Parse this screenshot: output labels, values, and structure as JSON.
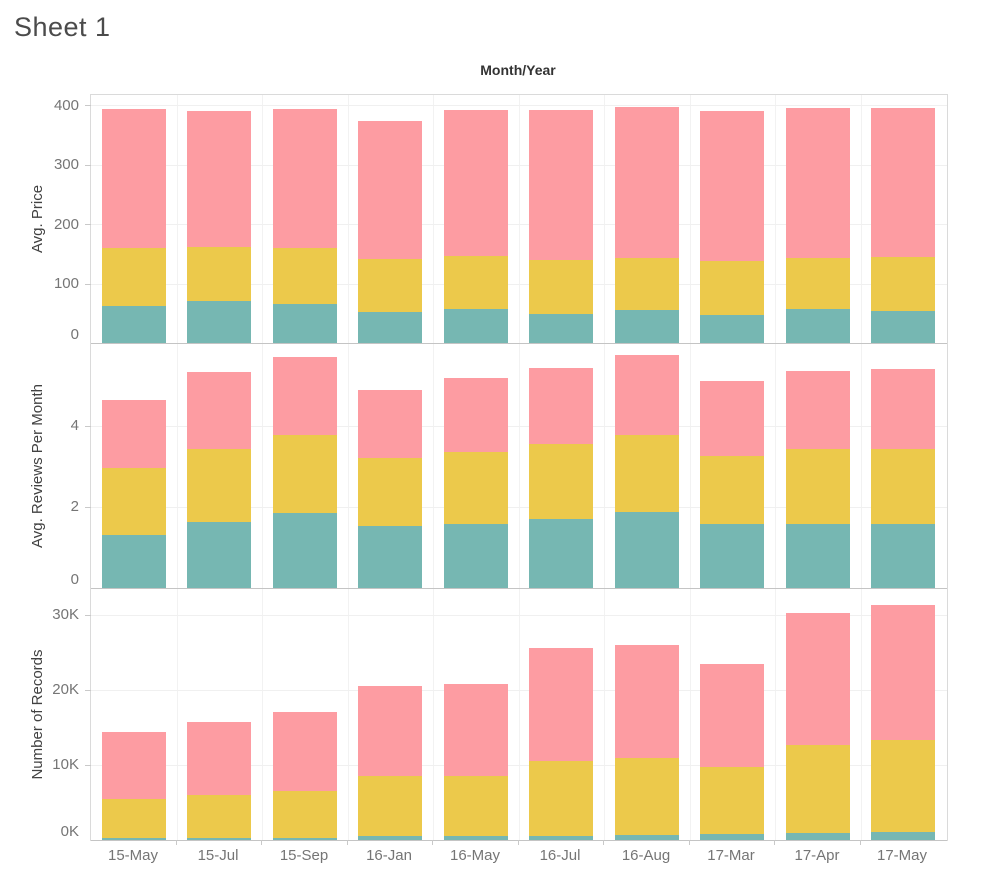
{
  "sheet_title": "Sheet 1",
  "chart_data": {
    "type": "bar",
    "stacked": true,
    "title": "Sheet 1",
    "x_axis_title": "Month/Year",
    "legend_position": "none",
    "grid": true,
    "categories": [
      "15-May",
      "15-Jul",
      "15-Sep",
      "16-Jan",
      "16-May",
      "16-Jul",
      "16-Aug",
      "17-Mar",
      "17-Apr",
      "17-May"
    ],
    "segment_colors": {
      "teal": "#76b7b2",
      "yellow": "#ecc94b",
      "pink": "#fd9ca2"
    },
    "panels": [
      {
        "ylabel": "Avg. Price",
        "ylim": [
          0,
          417
        ],
        "yticks": [
          {
            "v": 0,
            "label": "0"
          },
          {
            "v": 100,
            "label": "100"
          },
          {
            "v": 200,
            "label": "200"
          },
          {
            "v": 300,
            "label": "300"
          },
          {
            "v": 400,
            "label": "400"
          }
        ],
        "series": [
          {
            "name": "teal",
            "values": [
              63,
              70,
              66,
              53,
              58,
              49,
              55,
              47,
              57,
              54
            ]
          },
          {
            "name": "yellow",
            "values": [
              97,
              92,
              94,
              88,
              89,
              91,
              88,
              91,
              86,
              90
            ]
          },
          {
            "name": "pink",
            "values": [
              234,
              229,
              233,
              232,
              245,
              251,
              254,
              252,
              252,
              251
            ]
          }
        ]
      },
      {
        "ylabel": "Avg. Reviews Per Month",
        "ylim": [
          0,
          6.02
        ],
        "yticks": [
          {
            "v": 0,
            "label": "0"
          },
          {
            "v": 2,
            "label": "2"
          },
          {
            "v": 4,
            "label": "4"
          }
        ],
        "series": [
          {
            "name": "teal",
            "values": [
              1.32,
              1.62,
              1.84,
              1.54,
              1.57,
              1.7,
              1.87,
              1.59,
              1.59,
              1.57
            ]
          },
          {
            "name": "yellow",
            "values": [
              1.65,
              1.82,
              1.93,
              1.68,
              1.78,
              1.85,
              1.9,
              1.68,
              1.83,
              1.85
            ]
          },
          {
            "name": "pink",
            "values": [
              1.68,
              1.88,
              1.92,
              1.66,
              1.82,
              1.87,
              1.99,
              1.83,
              1.93,
              1.98
            ]
          }
        ]
      },
      {
        "ylabel": "Number of Records",
        "ylim": [
          0,
          33400
        ],
        "yticks": [
          {
            "v": 0,
            "label": "0K"
          },
          {
            "v": 10000,
            "label": "10K"
          },
          {
            "v": 20000,
            "label": "20K"
          },
          {
            "v": 30000,
            "label": "30K"
          }
        ],
        "series": [
          {
            "name": "teal",
            "values": [
              300,
              300,
              300,
              500,
              500,
              600,
              700,
              800,
              1000,
              1100
            ]
          },
          {
            "name": "yellow",
            "values": [
              5200,
              5700,
              6200,
              8000,
              8000,
              9900,
              10200,
              8900,
              11700,
              12200
            ]
          },
          {
            "name": "pink",
            "values": [
              8900,
              9700,
              10500,
              12000,
              12300,
              15000,
              15100,
              13700,
              17500,
              18000
            ]
          }
        ]
      }
    ]
  }
}
